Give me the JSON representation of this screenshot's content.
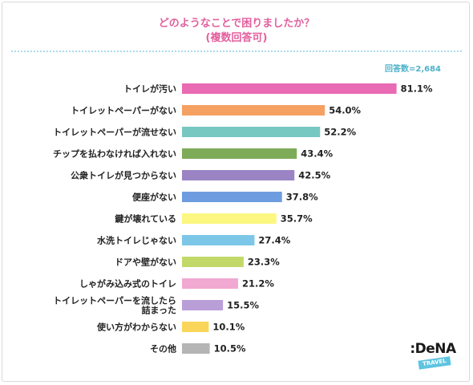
{
  "title": {
    "line1": "どのようなことで困りましたか？",
    "line2": "(複数回答可)"
  },
  "respondents": "回答数=2,684",
  "logo": {
    "word": ":DeNA",
    "tag": "TRAVEL"
  },
  "chart_data": {
    "type": "bar",
    "orientation": "horizontal",
    "unit": "%",
    "xlim": [
      0,
      100
    ],
    "grid": false,
    "categories": [
      "トイレが汚い",
      "トイレットペーパーがない",
      "トイレットペーパーが流せない",
      "チップを払わなければ入れない",
      "公衆トイレが見つからない",
      "便座がない",
      "鍵が壊れている",
      "水洗トイレじゃない",
      "ドアや壁がない",
      "しゃがみ込み式のトイレ",
      "トイレットペーパーを流したら\n詰まった",
      "使い方がわからない",
      "その他"
    ],
    "values": [
      81.1,
      54.0,
      52.2,
      43.4,
      42.5,
      37.8,
      35.7,
      27.4,
      23.3,
      21.2,
      15.5,
      10.1,
      10.5
    ],
    "value_labels": [
      "81.1%",
      "54.0%",
      "52.2%",
      "43.4%",
      "42.5%",
      "37.8%",
      "35.7%",
      "27.4%",
      "23.3%",
      "21.2%",
      "15.5%",
      "10.1%",
      "10.5%"
    ],
    "colors": [
      "#e86bb3",
      "#f5a161",
      "#78c8c2",
      "#7eab58",
      "#9b84c4",
      "#6d9de0",
      "#fbf780",
      "#7cc7e8",
      "#c2d96a",
      "#f1a9d2",
      "#b99ed8",
      "#f9d65a",
      "#b5b5b5"
    ]
  }
}
